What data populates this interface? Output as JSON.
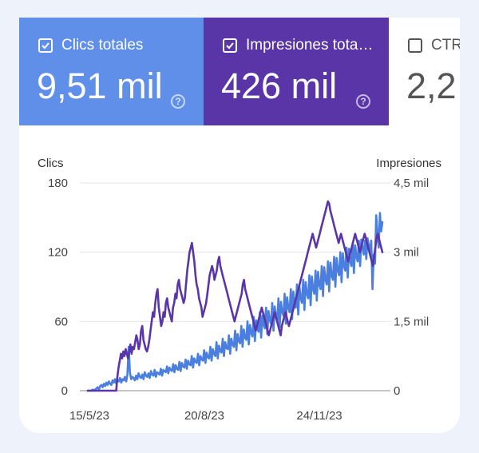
{
  "tiles": {
    "clicks": {
      "label": "Clics totales",
      "value": "9,51 mil",
      "checked": true,
      "color": "#5f8fe8"
    },
    "impressions": {
      "label": "Impresiones tota…",
      "value": "426 mil",
      "checked": true,
      "color": "#5a35a8"
    },
    "ctr": {
      "label": "CTR",
      "value": "2,2",
      "checked": false
    }
  },
  "help_glyph": "?",
  "chart_data": {
    "type": "line",
    "left_axis": {
      "label": "Clics",
      "ticks": [
        "0",
        "60",
        "120",
        "180"
      ],
      "range": [
        0,
        180
      ]
    },
    "right_axis": {
      "label": "Impresiones",
      "ticks": [
        "0",
        "1,5 mil",
        "3 mil",
        "4,5 mil"
      ],
      "range": [
        0,
        4500
      ]
    },
    "x_ticks": [
      "15/5/23",
      "20/8/23",
      "24/11/23"
    ],
    "grid": true,
    "series": [
      {
        "axis": "left",
        "color": "#4a7fe0",
        "values": [
          0,
          0,
          0,
          0,
          1,
          0,
          1,
          2,
          3,
          1,
          4,
          5,
          3,
          6,
          4,
          7,
          5,
          8,
          6,
          5,
          9,
          7,
          10,
          6,
          9,
          8,
          11,
          7,
          10,
          9,
          12,
          8,
          14,
          38,
          16,
          10,
          12,
          11,
          9,
          13,
          10,
          15,
          12,
          11,
          14,
          10,
          16,
          13,
          12,
          15,
          11,
          17,
          14,
          13,
          18,
          12,
          16,
          15,
          14,
          19,
          13,
          18,
          17,
          16,
          21,
          15,
          20,
          18,
          17,
          23,
          16,
          22,
          19,
          18,
          25,
          17,
          24,
          21,
          20,
          27,
          19,
          26,
          23,
          22,
          30,
          20,
          28,
          25,
          24,
          32,
          22,
          30,
          27,
          26,
          35,
          24,
          33,
          29,
          28,
          38,
          26,
          36,
          32,
          30,
          42,
          28,
          39,
          34,
          33,
          45,
          30,
          42,
          37,
          36,
          48,
          32,
          45,
          40,
          38,
          52,
          35,
          49,
          43,
          41,
          56,
          38,
          53,
          46,
          44,
          60,
          40,
          57,
          50,
          47,
          64,
          43,
          61,
          54,
          51,
          68,
          46,
          65,
          57,
          54,
          72,
          49,
          69,
          61,
          58,
          76,
          52,
          73,
          64,
          61,
          80,
          55,
          77,
          68,
          65,
          84,
          58,
          81,
          72,
          68,
          88,
          62,
          86,
          76,
          72,
          92,
          66,
          90,
          80,
          76,
          96,
          70,
          94,
          84,
          80,
          100,
          74,
          99,
          88,
          84,
          104,
          78,
          103,
          92,
          88,
          108,
          82,
          107,
          96,
          92,
          112,
          86,
          111,
          100,
          96,
          116,
          90,
          115,
          104,
          100,
          120,
          94,
          119,
          108,
          104,
          124,
          98,
          123,
          112,
          108,
          128,
          102,
          126,
          116,
          112,
          130,
          108,
          131,
          124,
          118,
          130,
          114,
          132,
          126,
          120,
          130,
          88,
          118,
          110,
          152,
          136,
          124,
          154,
          138,
          146
        ]
      },
      {
        "axis": "right",
        "color": "#5a35a8",
        "values": [
          0,
          0,
          0,
          0,
          0,
          0,
          0,
          0,
          0,
          0,
          0,
          0,
          0,
          0,
          0,
          0,
          0,
          0,
          0,
          0,
          0,
          0,
          0,
          0,
          0,
          300,
          500,
          650,
          800,
          700,
          850,
          750,
          900,
          800,
          700,
          850,
          1000,
          800,
          950,
          900,
          1050,
          1200,
          1100,
          900,
          1000,
          1300,
          1400,
          1100,
          1000,
          900,
          850,
          950,
          1100,
          1300,
          1500,
          1700,
          1600,
          1900,
          2100,
          2200,
          1800,
          1600,
          1400,
          1500,
          1700,
          1600,
          1900,
          2000,
          1800,
          1700,
          1600,
          1500,
          1800,
          1900,
          2100,
          2000,
          2300,
          2400,
          2200,
          2100,
          2000,
          1900,
          2000,
          2300,
          2600,
          2800,
          3000,
          3100,
          3200,
          3000,
          2800,
          2500,
          2300,
          2200,
          2000,
          1900,
          1800,
          1600,
          1700,
          1800,
          1900,
          2100,
          2300,
          2500,
          2600,
          2700,
          2600,
          2400,
          2500,
          2600,
          2800,
          2900,
          2700,
          2600,
          2500,
          2400,
          2300,
          2200,
          2100,
          2000,
          1900,
          1800,
          1700,
          1600,
          1500,
          1600,
          1700,
          1800,
          1900,
          2000,
          2100,
          2300,
          2400,
          2200,
          2100,
          2000,
          1900,
          1800,
          1700,
          1600,
          1500,
          1400,
          1300,
          1400,
          1500,
          1600,
          1700,
          1800,
          1700,
          1600,
          1500,
          1400,
          1300,
          1200,
          1300,
          1400,
          1500,
          1600,
          1700,
          1600,
          1500,
          1400,
          1300,
          1200,
          1400,
          1500,
          1600,
          1700,
          1600,
          1500,
          1400,
          1500,
          1600,
          1700,
          1800,
          1900,
          2000,
          2100,
          2200,
          2300,
          2400,
          2500,
          2600,
          2700,
          2800,
          2900,
          3000,
          3100,
          3200,
          3300,
          3400,
          3300,
          3200,
          3100,
          3200,
          3300,
          3400,
          3500,
          3600,
          3700,
          3800,
          3900,
          4000,
          4100,
          4050,
          3900,
          3800,
          3700,
          3600,
          3500,
          3400,
          3300,
          3200,
          3300,
          3400,
          3300,
          3200,
          3100,
          3000,
          2900,
          2800,
          2900,
          3000,
          3100,
          3200,
          3300,
          3400,
          3300,
          3200,
          3100,
          3000,
          3100,
          3200,
          3300,
          3400,
          3300,
          3200,
          3100,
          3000,
          2900,
          2800,
          2700,
          2900,
          3100,
          3300,
          3400,
          3300,
          3200,
          3100,
          3000
        ]
      }
    ]
  }
}
